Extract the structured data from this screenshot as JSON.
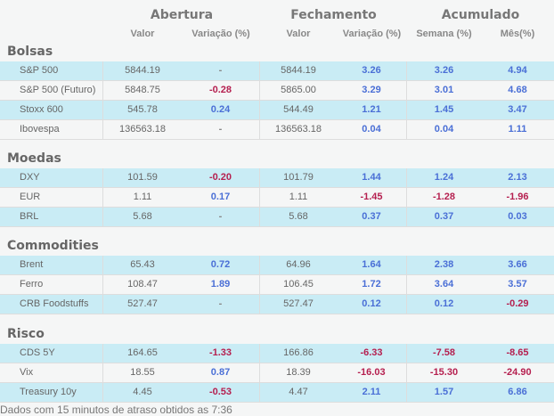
{
  "groups": {
    "abertura": "Abertura",
    "fechamento": "Fechamento",
    "acumulado": "Acumulado"
  },
  "columns": {
    "ab_valor": "Valor",
    "ab_var": "Variação (%)",
    "fe_valor": "Valor",
    "fe_var": "Variação (%)",
    "semana": "Semana (%)",
    "mes": "Mês(%)"
  },
  "colors": {
    "positive": "#4a6fd6",
    "negative": "#b51f4f",
    "row_highlight": "#c9ecf5"
  },
  "sections": [
    {
      "title": "Bolsas",
      "rows": [
        [
          "S&P 500",
          "5844.19",
          "-",
          "5844.19",
          "3.26",
          "3.26",
          "4.94"
        ],
        [
          "S&P 500 (Futuro)",
          "5848.75",
          "-0.28",
          "5865.00",
          "3.29",
          "3.01",
          "4.68"
        ],
        [
          "Stoxx 600",
          "545.78",
          "0.24",
          "544.49",
          "1.21",
          "1.45",
          "3.47"
        ],
        [
          "Ibovespa",
          "136563.18",
          "-",
          "136563.18",
          "0.04",
          "0.04",
          "1.11"
        ]
      ]
    },
    {
      "title": "Moedas",
      "rows": [
        [
          "DXY",
          "101.59",
          "-0.20",
          "101.79",
          "1.44",
          "1.24",
          "2.13"
        ],
        [
          "EUR",
          "1.11",
          "0.17",
          "1.11",
          "-1.45",
          "-1.28",
          "-1.96"
        ],
        [
          "BRL",
          "5.68",
          "-",
          "5.68",
          "0.37",
          "0.37",
          "0.03"
        ]
      ]
    },
    {
      "title": "Commodities",
      "rows": [
        [
          "Brent",
          "65.43",
          "0.72",
          "64.96",
          "1.64",
          "2.38",
          "3.66"
        ],
        [
          "Ferro",
          "108.47",
          "1.89",
          "106.45",
          "1.72",
          "3.64",
          "3.57"
        ],
        [
          "CRB Foodstuffs",
          "527.47",
          "-",
          "527.47",
          "0.12",
          "0.12",
          "-0.29"
        ]
      ]
    },
    {
      "title": "Risco",
      "rows": [
        [
          "CDS 5Y",
          "164.65",
          "-1.33",
          "166.86",
          "-6.33",
          "-7.58",
          "-8.65"
        ],
        [
          "Vix",
          "18.55",
          "0.87",
          "18.39",
          "-16.03",
          "-15.30",
          "-24.90"
        ],
        [
          "Treasury 10y",
          "4.45",
          "-0.53",
          "4.47",
          "2.11",
          "1.57",
          "6.86"
        ]
      ]
    }
  ],
  "footer": "Dados com 15 minutos de atraso obtidos as 7:36"
}
